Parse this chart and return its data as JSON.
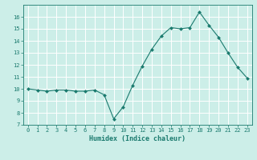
{
  "xlabel": "Humidex (Indice chaleur)",
  "x": [
    0,
    1,
    2,
    3,
    4,
    5,
    6,
    7,
    8,
    9,
    10,
    11,
    12,
    13,
    14,
    15,
    16,
    17,
    18,
    19,
    20,
    21,
    22,
    23
  ],
  "y": [
    10.0,
    9.9,
    9.8,
    9.9,
    9.9,
    9.8,
    9.8,
    9.9,
    9.5,
    7.5,
    8.5,
    10.3,
    11.9,
    13.3,
    14.4,
    15.1,
    15.0,
    15.1,
    16.4,
    15.3,
    14.3,
    13.0,
    11.8,
    10.9
  ],
  "line_color": "#1a7a6e",
  "marker": "D",
  "marker_size": 2.0,
  "bg_color": "#cceee8",
  "grid_color": "#ffffff",
  "tick_color": "#1a7a6e",
  "label_color": "#1a7a6e",
  "ylim": [
    7,
    17
  ],
  "xlim": [
    -0.5,
    23.5
  ],
  "yticks": [
    7,
    8,
    9,
    10,
    11,
    12,
    13,
    14,
    15,
    16
  ],
  "xticks": [
    0,
    1,
    2,
    3,
    4,
    5,
    6,
    7,
    8,
    9,
    10,
    11,
    12,
    13,
    14,
    15,
    16,
    17,
    18,
    19,
    20,
    21,
    22,
    23
  ],
  "xlabel_fontsize": 6.0,
  "tick_fontsize": 5.0,
  "linewidth": 0.8
}
